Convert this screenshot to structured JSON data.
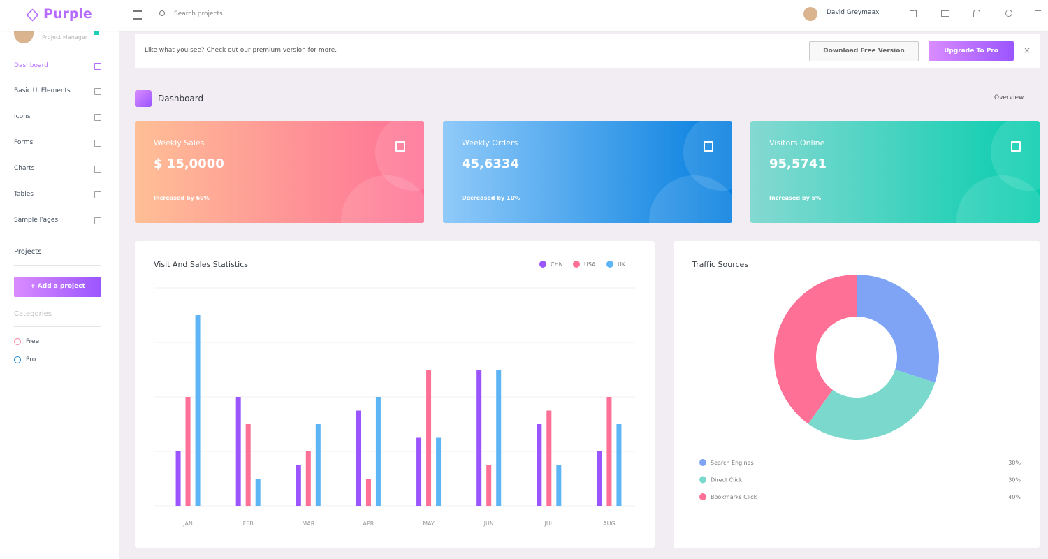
{
  "header": {
    "logo": "Purple",
    "search_placeholder": "Search projects",
    "user_name": "David Greymaax"
  },
  "sidebar": {
    "user_role": "Project Manager",
    "menu": [
      "Dashboard",
      "Basic UI Elements",
      "Icons",
      "Forms",
      "Charts",
      "Tables",
      "Sample Pages"
    ],
    "projects_title": "Projects",
    "add_project": "+ Add a project",
    "categories_title": "Categories",
    "categories": [
      "Free",
      "Pro"
    ]
  },
  "banner": {
    "text": "Like what you see? Check out our premium version for more.",
    "download": "Download Free Version",
    "upgrade": "Upgrade To Pro"
  },
  "page": {
    "title": "Dashboard",
    "overview": "Overview"
  },
  "cards": [
    {
      "title": "Weekly Sales",
      "value": "$ 15,0000",
      "note": "Increased by 60%"
    },
    {
      "title": "Weekly Orders",
      "value": "45,6334",
      "note": "Decreased by 10%"
    },
    {
      "title": "Visitors Online",
      "value": "95,5741",
      "note": "Increased by 5%"
    }
  ],
  "sales_chart": {
    "type": "bar",
    "title": "Visit And Sales Statistics",
    "categories": [
      "JAN",
      "FEB",
      "MAR",
      "APR",
      "MAY",
      "JUN",
      "JUL",
      "AUG"
    ],
    "series": [
      {
        "name": "CHN",
        "color": "#9a55ff",
        "values": [
          10,
          20,
          7.5,
          17.5,
          12.5,
          25,
          15,
          10
        ]
      },
      {
        "name": "USA",
        "color": "#fe7096",
        "values": [
          20,
          15,
          10,
          5,
          25,
          7.5,
          17.5,
          20
        ]
      },
      {
        "name": "UK",
        "color": "#5eb5f5",
        "values": [
          35,
          5,
          15,
          20,
          12.5,
          25,
          7.5,
          15
        ]
      }
    ],
    "ylim": [
      0,
      40
    ],
    "yticks": [
      0,
      10,
      20,
      30,
      40
    ],
    "grid": true
  },
  "traffic_chart": {
    "type": "pie",
    "title": "Traffic Sources",
    "categories": [
      "Search Engines",
      "Direct Click",
      "Bookmarks Click"
    ],
    "values": [
      30,
      30,
      40
    ],
    "value_labels": [
      "30%",
      "30%",
      "40%"
    ],
    "colors": [
      "#7fa4f5",
      "#7ad9cc",
      "#fe7096"
    ]
  }
}
